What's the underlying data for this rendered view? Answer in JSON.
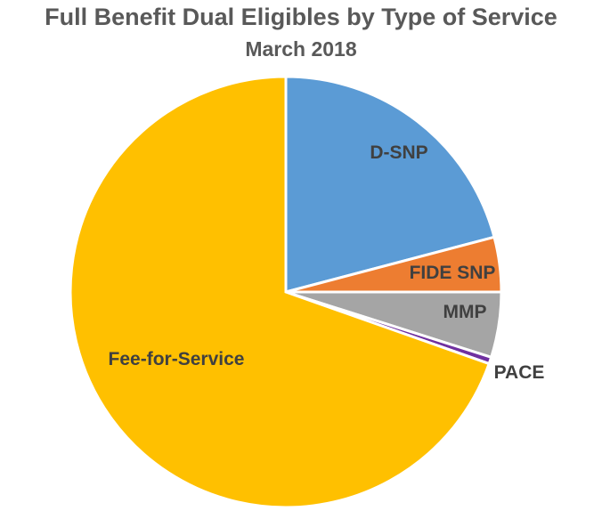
{
  "chart_data": {
    "type": "pie",
    "title": "Full Benefit Dual Eligibles by Type of Service",
    "subtitle": "March 2018",
    "unit": "percent (estimated)",
    "slices": [
      {
        "label": "D-SNP",
        "value": 20.9,
        "color": "#5B9BD5"
      },
      {
        "label": "FIDE SNP",
        "value": 4.1,
        "color": "#ED7D31"
      },
      {
        "label": "MMP",
        "value": 4.9,
        "color": "#A5A5A5"
      },
      {
        "label": "PACE",
        "value": 0.5,
        "color": "#7030A0"
      },
      {
        "label": "Fee-for-Service",
        "value": 69.6,
        "color": "#FFC000"
      }
    ],
    "start_angle_deg": 0,
    "direction": "clockwise",
    "legend": "none"
  }
}
